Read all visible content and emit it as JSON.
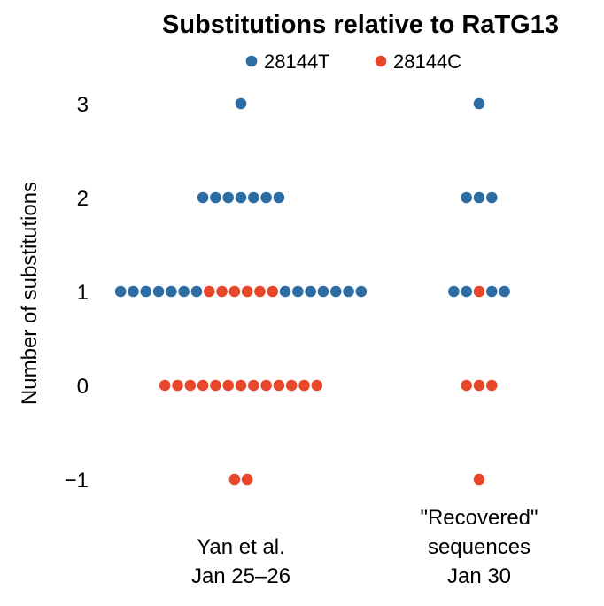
{
  "chart_data": {
    "type": "scatter",
    "subtype": "dot-plot",
    "title": "Substitutions relative to RaTG13",
    "ylabel": "Number of substitutions",
    "xlabel": "",
    "ylim": [
      -1,
      3
    ],
    "y_ticks": [
      "3",
      "2",
      "1",
      "0",
      "−1"
    ],
    "y_tick_values": [
      3,
      2,
      1,
      0,
      -1
    ],
    "grid": false,
    "legend_position": "top",
    "colors": {
      "28144T": "#2e6da4",
      "28144C": "#e8472b"
    },
    "categories": [
      {
        "lines": [
          "Yan et al.",
          "Jan 25–26"
        ]
      },
      {
        "lines": [
          "\"Recovered\"",
          "sequences",
          "Jan 30"
        ]
      }
    ],
    "series": [
      {
        "name": "28144T",
        "points": [
          {
            "category": 0,
            "y": 3,
            "count": 1
          },
          {
            "category": 0,
            "y": 2,
            "count": 7
          },
          {
            "category": 0,
            "y": 1,
            "count": 14
          },
          {
            "category": 1,
            "y": 3,
            "count": 1
          },
          {
            "category": 1,
            "y": 2,
            "count": 3
          },
          {
            "category": 1,
            "y": 1,
            "count": 4
          }
        ]
      },
      {
        "name": "28144C",
        "points": [
          {
            "category": 0,
            "y": 1,
            "count": 6
          },
          {
            "category": 0,
            "y": 0,
            "count": 13
          },
          {
            "category": 0,
            "y": -1,
            "count": 2
          },
          {
            "category": 1,
            "y": 1,
            "count": 1
          },
          {
            "category": 1,
            "y": 0,
            "count": 3
          },
          {
            "category": 1,
            "y": -1,
            "count": 1
          }
        ]
      }
    ],
    "rows": [
      {
        "category": 0,
        "y": 3,
        "dots": [
          "28144T"
        ]
      },
      {
        "category": 0,
        "y": 2,
        "dots": [
          "28144T",
          "28144T",
          "28144T",
          "28144T",
          "28144T",
          "28144T",
          "28144T"
        ]
      },
      {
        "category": 0,
        "y": 1,
        "dots": [
          "28144T",
          "28144T",
          "28144T",
          "28144T",
          "28144T",
          "28144T",
          "28144T",
          "28144C",
          "28144C",
          "28144C",
          "28144C",
          "28144C",
          "28144C",
          "28144T",
          "28144T",
          "28144T",
          "28144T",
          "28144T",
          "28144T",
          "28144T"
        ]
      },
      {
        "category": 0,
        "y": 0,
        "dots": [
          "28144C",
          "28144C",
          "28144C",
          "28144C",
          "28144C",
          "28144C",
          "28144C",
          "28144C",
          "28144C",
          "28144C",
          "28144C",
          "28144C",
          "28144C"
        ]
      },
      {
        "category": 0,
        "y": -1,
        "dots": [
          "28144C",
          "28144C"
        ]
      },
      {
        "category": 1,
        "y": 3,
        "dots": [
          "28144T"
        ]
      },
      {
        "category": 1,
        "y": 2,
        "dots": [
          "28144T",
          "28144T",
          "28144T"
        ]
      },
      {
        "category": 1,
        "y": 1,
        "dots": [
          "28144T",
          "28144T",
          "28144C",
          "28144T",
          "28144T"
        ]
      },
      {
        "category": 1,
        "y": 0,
        "dots": [
          "28144C",
          "28144C",
          "28144C"
        ]
      },
      {
        "category": 1,
        "y": -1,
        "dots": [
          "28144C"
        ]
      }
    ]
  }
}
